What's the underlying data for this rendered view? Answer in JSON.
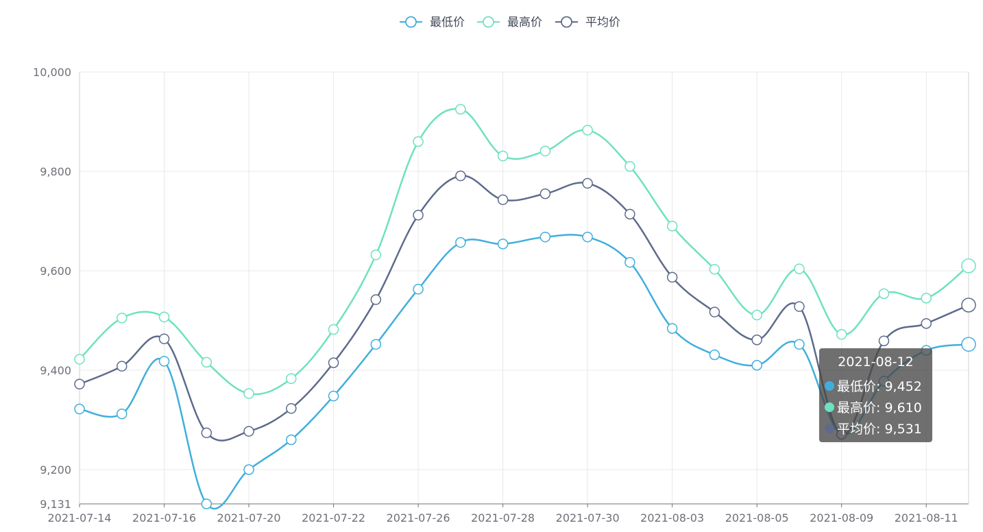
{
  "chart_data": {
    "type": "line",
    "smooth": true,
    "legend_position": "top-center",
    "categories": [
      "2021-07-14",
      "2021-07-15",
      "2021-07-16",
      "2021-07-19",
      "2021-07-20",
      "2021-07-21",
      "2021-07-22",
      "2021-07-23",
      "2021-07-26",
      "2021-07-27",
      "2021-07-28",
      "2021-07-29",
      "2021-07-30",
      "2021-08-02",
      "2021-08-03",
      "2021-08-04",
      "2021-08-05",
      "2021-08-06",
      "2021-08-09",
      "2021-08-10",
      "2021-08-11",
      "2021-08-12"
    ],
    "x_tick_labels": [
      "2021-07-14",
      "2021-07-16",
      "2021-07-20",
      "2021-07-22",
      "2021-07-26",
      "2021-07-28",
      "2021-07-30",
      "2021-08-03",
      "2021-08-05",
      "2021-08-09",
      "2021-08-11"
    ],
    "y_tick_labels": [
      "9,131",
      "9,200",
      "9,400",
      "9,600",
      "9,800",
      "10,000"
    ],
    "ylim": [
      9131,
      10000
    ],
    "grid": true,
    "series": [
      {
        "name": "最低价",
        "color": "#40aedc",
        "values": [
          9322,
          9312,
          9418,
          9131,
          9200,
          9260,
          9348,
          9452,
          9563,
          9657,
          9654,
          9668,
          9668,
          9617,
          9484,
          9431,
          9410,
          9452,
          9271,
          9378,
          9440,
          9452
        ]
      },
      {
        "name": "最高价",
        "color": "#6ee1c0",
        "values": [
          9422,
          9505,
          9507,
          9416,
          9353,
          9383,
          9482,
          9632,
          9860,
          9925,
          9831,
          9841,
          9883,
          9810,
          9690,
          9603,
          9511,
          9604,
          9472,
          9554,
          9545,
          9610
        ]
      },
      {
        "name": "平均价",
        "color": "#5d6a8b",
        "values": [
          9372,
          9408,
          9463,
          9274,
          9277,
          9323,
          9415,
          9542,
          9712,
          9791,
          9743,
          9755,
          9776,
          9714,
          9587,
          9517,
          9461,
          9528,
          9271,
          9459,
          9494,
          9531
        ]
      }
    ],
    "tooltip": {
      "date": "2021-08-12",
      "rows": [
        {
          "label": "最低价: 9,452",
          "color": "#40aedc"
        },
        {
          "label": "最高价: 9,610",
          "color": "#6ee1c0"
        },
        {
          "label": "平均价: 9,531",
          "color": "#5d6a8b"
        }
      ]
    }
  }
}
